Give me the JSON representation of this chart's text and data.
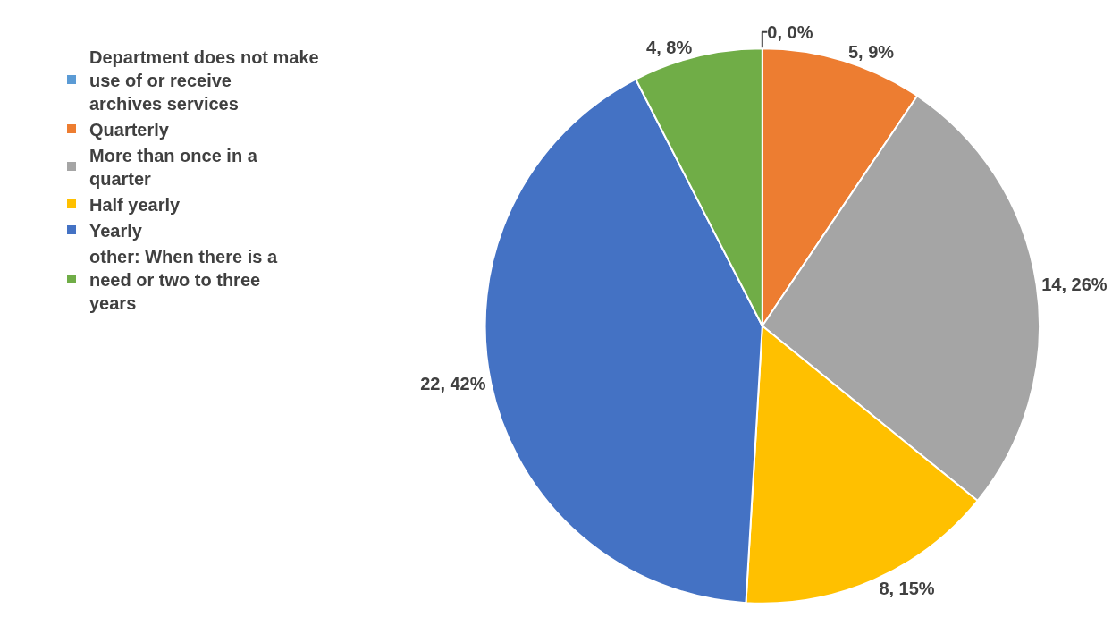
{
  "chart_data": {
    "type": "pie",
    "categories": [
      "Department does not make use of or receive archives services",
      "Quarterly",
      "More than once in a quarter",
      "Half yearly",
      "Yearly",
      "other: When there is a need or two to three years"
    ],
    "values": [
      0,
      5,
      14,
      8,
      22,
      4
    ],
    "colors": [
      "#5b9bd5",
      "#ed7d31",
      "#a5a5a5",
      "#ffc000",
      "#4472c4",
      "#70ad47"
    ],
    "value_labels": [
      "0, 0%",
      "5, 9%",
      "14, 26%",
      "8, 15%",
      "22, 42%",
      "4, 8%"
    ],
    "legend": "left"
  }
}
